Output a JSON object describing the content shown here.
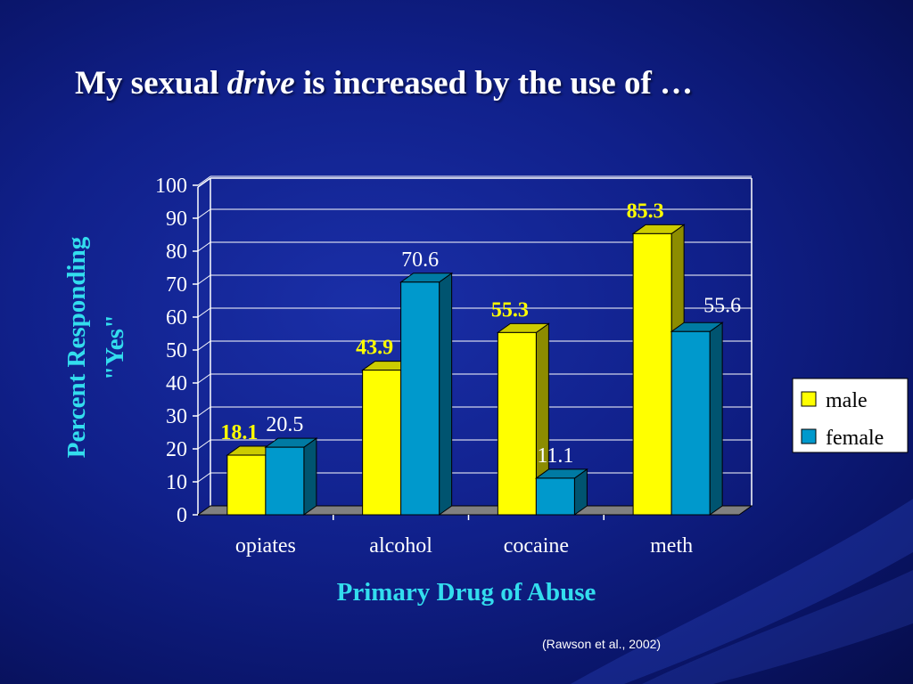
{
  "slide": {
    "title_part1": "My sexual",
    "title_emphasis": "drive",
    "title_part2": "is increased by the use of …",
    "citation": "(Rawson et al., 2002)"
  },
  "colors": {
    "male": "#ffff00",
    "female": "#0099cc",
    "axis_label": "#33ddee",
    "text": "#ffffff",
    "gridline": "#ffffff"
  },
  "chart_data": {
    "type": "bar",
    "style": "3d-clustered",
    "categories": [
      "opiates",
      "alcohol",
      "cocaine",
      "meth"
    ],
    "series": [
      {
        "name": "male",
        "values": [
          18.1,
          43.9,
          55.3,
          85.3
        ]
      },
      {
        "name": "female",
        "values": [
          20.5,
          70.6,
          11.1,
          55.6
        ]
      }
    ],
    "data_labels": {
      "male": [
        "18.1",
        "43.9",
        "55.3",
        "85.3"
      ],
      "female": [
        "20.5",
        "70.6",
        "11.1",
        "55.6"
      ]
    },
    "ylabel_line1": "Percent Responding",
    "ylabel_line2": "\"Yes\"",
    "xlabel": "Primary Drug of Abuse",
    "ylim": [
      0,
      100
    ],
    "yticks": [
      0,
      10,
      20,
      30,
      40,
      50,
      60,
      70,
      80,
      90,
      100
    ],
    "grid": true,
    "legend_position": "right"
  }
}
